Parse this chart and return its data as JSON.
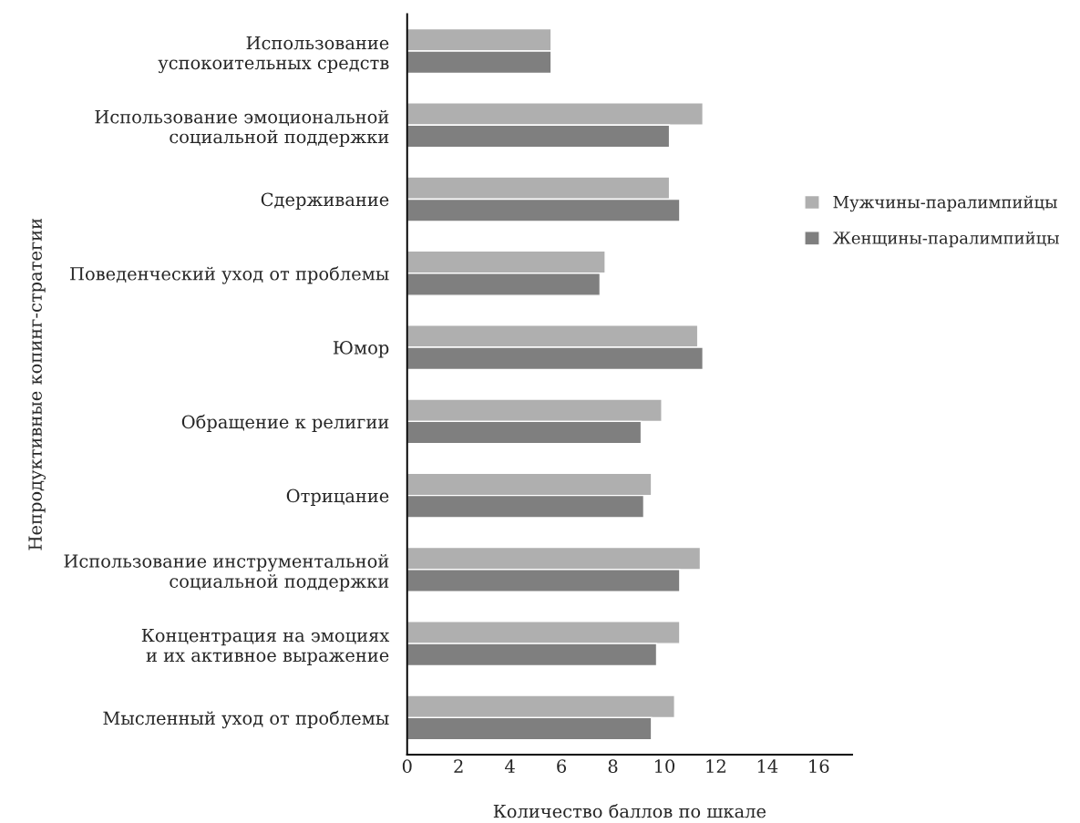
{
  "chart_data": {
    "type": "bar",
    "orientation": "horizontal",
    "xlabel": "Количество баллов по шкале",
    "ylabel": "Непродуктивные копинг-стратегии",
    "categories": [
      "Использование\nуспокоительных средств",
      "Использование эмоциональной\nсоциальной поддержки",
      "Сдерживание",
      "Поведенческий уход от проблемы",
      "Юмор",
      "Обращение к религии",
      "Отрицание",
      "Использование инструментальной\nсоциальной поддержки",
      "Концентрация на эмоциях\nи их активное выражение",
      "Мысленный уход от проблемы"
    ],
    "series": [
      {
        "name": "Мужчины-паралимпийцы",
        "color": "#afafaf",
        "values": [
          5.6,
          11.5,
          10.2,
          7.7,
          11.3,
          9.9,
          9.5,
          11.4,
          10.6,
          10.4
        ]
      },
      {
        "name": "Женщины-паралимпийцы",
        "color": "#7f7f7f",
        "values": [
          5.6,
          10.2,
          10.6,
          7.5,
          11.5,
          9.1,
          9.2,
          10.6,
          9.7,
          9.5
        ]
      }
    ],
    "xlim": [
      0,
      17.3
    ],
    "xticks": [
      0,
      2,
      4,
      6,
      8,
      10,
      12,
      14,
      16
    ],
    "grid": false,
    "legend": "right"
  }
}
